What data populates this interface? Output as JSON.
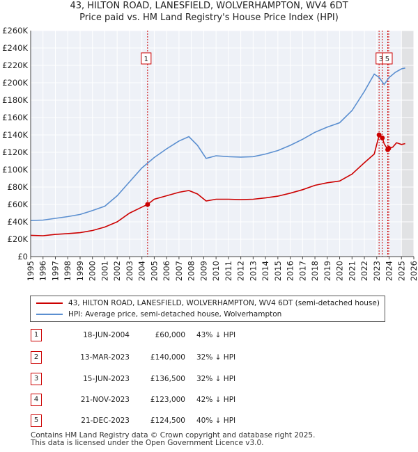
{
  "title": "43, HILTON ROAD, LANESFIELD, WOLVERHAMPTON, WV4 6DT",
  "subtitle": "Price paid vs. HM Land Registry's House Price Index (HPI)",
  "chart_data": {
    "type": "line",
    "x_range": [
      1995,
      2026
    ],
    "y_range": [
      0,
      260000
    ],
    "y_ticks": [
      {
        "value": 0,
        "label": "£0"
      },
      {
        "value": 20000,
        "label": "£20K"
      },
      {
        "value": 40000,
        "label": "£40K"
      },
      {
        "value": 60000,
        "label": "£60K"
      },
      {
        "value": 80000,
        "label": "£80K"
      },
      {
        "value": 100000,
        "label": "£100K"
      },
      {
        "value": 120000,
        "label": "£120K"
      },
      {
        "value": 140000,
        "label": "£140K"
      },
      {
        "value": 160000,
        "label": "£160K"
      },
      {
        "value": 180000,
        "label": "£180K"
      },
      {
        "value": 200000,
        "label": "£200K"
      },
      {
        "value": 220000,
        "label": "£220K"
      },
      {
        "value": 240000,
        "label": "£240K"
      },
      {
        "value": 260000,
        "label": "£260K"
      }
    ],
    "x_ticks": [
      "1995",
      "1996",
      "1997",
      "1998",
      "1999",
      "2000",
      "2001",
      "2002",
      "2003",
      "2004",
      "2005",
      "2006",
      "2007",
      "2008",
      "2009",
      "2010",
      "2011",
      "2012",
      "2013",
      "2014",
      "2015",
      "2016",
      "2017",
      "2018",
      "2019",
      "2020",
      "2021",
      "2022",
      "2023",
      "2024",
      "2025",
      "2026"
    ],
    "grid": true,
    "future_shade_from": 2025.0,
    "series": [
      {
        "name": "43, HILTON ROAD, LANESFIELD, WOLVERHAMPTON, WV4 6DT (semi-detached house)",
        "color": "#cc0000",
        "points": [
          [
            1995,
            24500
          ],
          [
            1996,
            24000
          ],
          [
            1997,
            25500
          ],
          [
            1998,
            26500
          ],
          [
            1999,
            27500
          ],
          [
            2000,
            30000
          ],
          [
            2001,
            34000
          ],
          [
            2002,
            40000
          ],
          [
            2003,
            50000
          ],
          [
            2004,
            57000
          ],
          [
            2004.46,
            60000
          ],
          [
            2005,
            66000
          ],
          [
            2006,
            70000
          ],
          [
            2007,
            74000
          ],
          [
            2007.8,
            76000
          ],
          [
            2008.5,
            72000
          ],
          [
            2009.2,
            64000
          ],
          [
            2010,
            66000
          ],
          [
            2011,
            66000
          ],
          [
            2012,
            65500
          ],
          [
            2013,
            66000
          ],
          [
            2014,
            67500
          ],
          [
            2015,
            69500
          ],
          [
            2016,
            73000
          ],
          [
            2017,
            77000
          ],
          [
            2018,
            82000
          ],
          [
            2019,
            85000
          ],
          [
            2020,
            87000
          ],
          [
            2021,
            95000
          ],
          [
            2022,
            108000
          ],
          [
            2022.8,
            118000
          ],
          [
            2023.2,
            140000
          ],
          [
            2023.45,
            136500
          ],
          [
            2023.6,
            130000
          ],
          [
            2023.89,
            123000
          ],
          [
            2023.97,
            124500
          ],
          [
            2024.3,
            126000
          ],
          [
            2024.6,
            131000
          ],
          [
            2025,
            129000
          ],
          [
            2025.3,
            130000
          ]
        ]
      },
      {
        "name": "HPI: Average price, semi-detached house, Wolverhampton",
        "color": "#5b8fd0",
        "points": [
          [
            1995,
            41500
          ],
          [
            1996,
            42000
          ],
          [
            1997,
            44000
          ],
          [
            1998,
            46000
          ],
          [
            1999,
            48500
          ],
          [
            2000,
            53000
          ],
          [
            2001,
            58000
          ],
          [
            2002,
            70000
          ],
          [
            2003,
            86000
          ],
          [
            2004,
            102000
          ],
          [
            2005,
            114000
          ],
          [
            2006,
            124000
          ],
          [
            2007,
            133000
          ],
          [
            2007.8,
            138000
          ],
          [
            2008.5,
            128000
          ],
          [
            2009.2,
            113000
          ],
          [
            2010,
            116000
          ],
          [
            2011,
            115000
          ],
          [
            2012,
            114500
          ],
          [
            2013,
            115000
          ],
          [
            2014,
            118000
          ],
          [
            2015,
            122000
          ],
          [
            2016,
            128000
          ],
          [
            2017,
            135000
          ],
          [
            2018,
            143000
          ],
          [
            2019,
            149000
          ],
          [
            2020,
            154000
          ],
          [
            2021,
            168000
          ],
          [
            2022,
            190000
          ],
          [
            2022.8,
            210000
          ],
          [
            2023.2,
            206000
          ],
          [
            2023.6,
            198000
          ],
          [
            2024,
            206000
          ],
          [
            2024.5,
            212000
          ],
          [
            2025,
            216000
          ],
          [
            2025.3,
            217000
          ]
        ]
      }
    ],
    "sales": [
      {
        "label": "1",
        "x": 2004.46,
        "price": 60000,
        "date": "18-JUN-2004",
        "price_text": "£60,000",
        "hpi_text": "43% ↓ HPI"
      },
      {
        "label": "2",
        "x": 2023.19,
        "price": 140000,
        "date": "13-MAR-2023",
        "price_text": "£140,000",
        "hpi_text": "32% ↓ HPI"
      },
      {
        "label": "3",
        "x": 2023.45,
        "price": 136500,
        "date": "15-JUN-2023",
        "price_text": "£136,500",
        "hpi_text": "32% ↓ HPI"
      },
      {
        "label": "4",
        "x": 2023.89,
        "price": 123000,
        "date": "21-NOV-2023",
        "price_text": "£123,000",
        "hpi_text": "42% ↓ HPI"
      },
      {
        "label": "5",
        "x": 2023.97,
        "price": 124500,
        "date": "21-DEC-2023",
        "price_text": "£124,500",
        "hpi_text": "40% ↓ HPI"
      }
    ],
    "chart_labels": [
      "1",
      "3",
      "5"
    ]
  },
  "legend": {
    "property_label": "43, HILTON ROAD, LANESFIELD, WOLVERHAMPTON, WV4 6DT (semi-detached house)",
    "hpi_label": "HPI: Average price, semi-detached house, Wolverhampton"
  },
  "footer": {
    "line1": "Contains HM Land Registry data © Crown copyright and database right 2025.",
    "line2": "This data is licensed under the Open Government Licence v3.0."
  }
}
